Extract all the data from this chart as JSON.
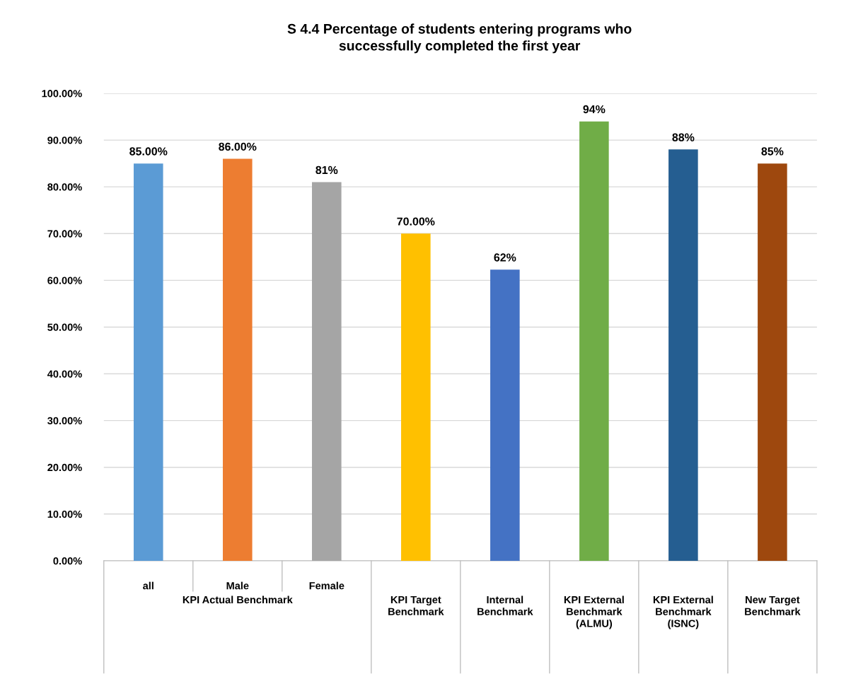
{
  "chart_data": {
    "type": "bar",
    "title": "S 4.4 Percentage of students entering programs who successfully completed the first year",
    "categories": [
      "all",
      "Male",
      "Female",
      "KPI Target\nBenchmark",
      "Internal\nBenchmark",
      "KPI External\nBenchmark\n(ALMU)",
      "KPI External\nBenchmark\n(ISNC)",
      "New Target\nBenchmark"
    ],
    "values": [
      85,
      86,
      81,
      70,
      62.3,
      94,
      88,
      85
    ],
    "value_labels": [
      "85.00%",
      "86.00%",
      "81%",
      "70.00%",
      "62%",
      "94%",
      "88%",
      "85%"
    ],
    "colors": [
      "#5b9bd5",
      "#ed7d31",
      "#a5a5a5",
      "#ffc000",
      "#4472c4",
      "#70ad47",
      "#255e91",
      "#9e480e"
    ],
    "annotations": [
      "KPI Actual Benchmark"
    ],
    "ylim": [
      0,
      100
    ],
    "yticks": [
      {
        "value": 0,
        "label": "0.00%"
      },
      {
        "value": 10,
        "label": "10.00%"
      },
      {
        "value": 20,
        "label": "20.00%"
      },
      {
        "value": 30,
        "label": "30.00%"
      },
      {
        "value": 40,
        "label": "40.00%"
      },
      {
        "value": 50,
        "label": "50.00%"
      },
      {
        "value": 60,
        "label": "60.00%"
      },
      {
        "value": 70,
        "label": "70.00%"
      },
      {
        "value": 80,
        "label": "80.00%"
      },
      {
        "value": 90,
        "label": "90.00%"
      },
      {
        "value": 100,
        "label": "100.00%"
      }
    ],
    "grid": "y"
  }
}
